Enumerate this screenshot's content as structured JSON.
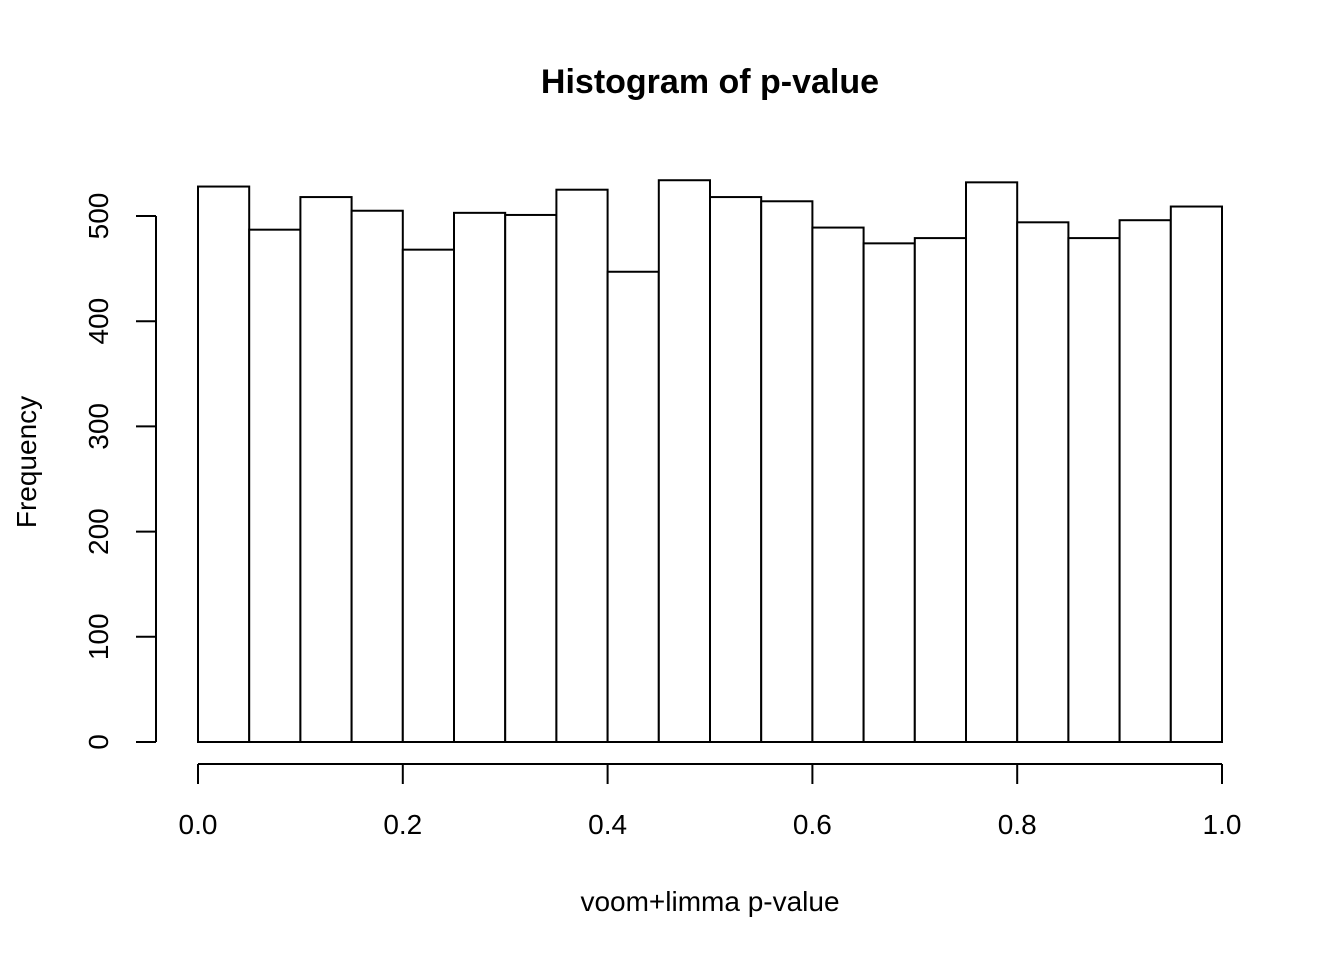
{
  "chart_data": {
    "type": "bar",
    "title": "Histogram of p-value",
    "xlabel": "voom+limma p-value",
    "ylabel": "Frequency",
    "bin_edges": [
      0.0,
      0.05,
      0.1,
      0.15,
      0.2,
      0.25,
      0.3,
      0.35,
      0.4,
      0.45,
      0.5,
      0.55,
      0.6,
      0.65,
      0.7,
      0.75,
      0.8,
      0.85,
      0.9,
      0.95,
      1.0
    ],
    "values": [
      528,
      487,
      518,
      505,
      468,
      503,
      501,
      525,
      447,
      534,
      518,
      514,
      489,
      474,
      479,
      532,
      494,
      479,
      496,
      509
    ],
    "xlim": [
      0,
      1
    ],
    "ylim": [
      0,
      540
    ],
    "x_ticks": [
      "0.0",
      "0.2",
      "0.4",
      "0.6",
      "0.8",
      "1.0"
    ],
    "y_ticks": [
      "0",
      "100",
      "200",
      "300",
      "400",
      "500"
    ],
    "grid": false
  }
}
